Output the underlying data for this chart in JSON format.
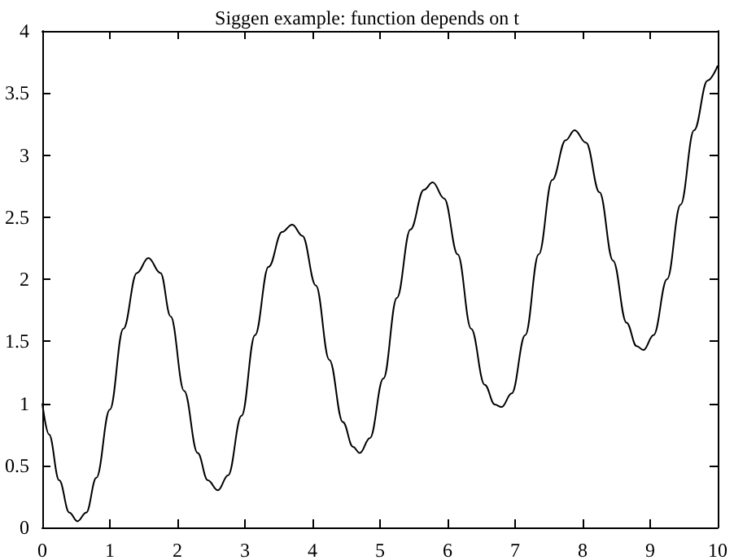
{
  "chart_data": {
    "type": "line",
    "title": "Siggen example: function depends on t",
    "x": [
      0,
      0.1,
      0.25,
      0.4,
      0.52,
      0.65,
      0.8,
      1.0,
      1.2,
      1.4,
      1.57,
      1.75,
      1.9,
      2.1,
      2.3,
      2.45,
      2.6,
      2.75,
      2.95,
      3.15,
      3.35,
      3.55,
      3.7,
      3.85,
      4.05,
      4.25,
      4.45,
      4.6,
      4.7,
      4.85,
      5.05,
      5.25,
      5.45,
      5.65,
      5.78,
      5.95,
      6.15,
      6.35,
      6.55,
      6.7,
      6.8,
      6.95,
      7.15,
      7.35,
      7.55,
      7.75,
      7.88,
      8.05,
      8.25,
      8.45,
      8.65,
      8.8,
      8.9,
      9.05,
      9.25,
      9.45,
      9.65,
      9.85,
      10
    ],
    "series": [
      {
        "color": "#000000",
        "values": [
          1.0,
          0.75,
          0.38,
          0.12,
          0.05,
          0.12,
          0.4,
          0.95,
          1.6,
          2.05,
          2.17,
          2.05,
          1.7,
          1.1,
          0.6,
          0.38,
          0.3,
          0.42,
          0.9,
          1.55,
          2.1,
          2.38,
          2.44,
          2.35,
          1.95,
          1.35,
          0.85,
          0.65,
          0.6,
          0.72,
          1.2,
          1.85,
          2.4,
          2.72,
          2.78,
          2.65,
          2.2,
          1.6,
          1.15,
          0.99,
          0.97,
          1.08,
          1.55,
          2.2,
          2.8,
          3.12,
          3.2,
          3.1,
          2.7,
          2.15,
          1.65,
          1.46,
          1.43,
          1.55,
          2.0,
          2.6,
          3.2,
          3.6,
          3.72
        ]
      }
    ],
    "xlim": [
      0,
      10
    ],
    "xticks": [
      0,
      1,
      2,
      3,
      4,
      5,
      6,
      7,
      8,
      9,
      10
    ],
    "ylim": [
      0,
      4
    ],
    "yticks": [
      0,
      0.5,
      1,
      1.5,
      2,
      2.5,
      3,
      3.5,
      4
    ],
    "marker": "none",
    "line_style": "solid"
  }
}
